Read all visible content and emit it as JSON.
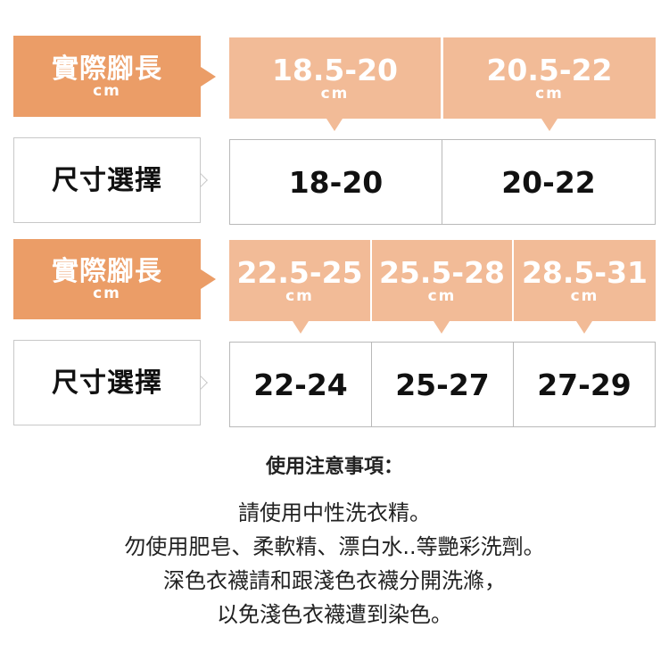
{
  "label_colors": {
    "actual": "#eb9d67",
    "header": "#f2bb97"
  },
  "rows": [
    {
      "foot_label": "實際腳長",
      "unit": "cm",
      "size_label": "尺寸選擇",
      "foot_ranges": [
        "18.5-20",
        "20.5-22"
      ],
      "sizes": [
        "18-20",
        "20-22"
      ]
    },
    {
      "foot_label": "實際腳長",
      "unit": "cm",
      "size_label": "尺寸選擇",
      "foot_ranges": [
        "22.5-25",
        "25.5-28",
        "28.5-31"
      ],
      "sizes": [
        "22-24",
        "25-27",
        "27-29"
      ]
    }
  ],
  "notes": {
    "title": "使用注意事項：",
    "lines": [
      "請使用中性洗衣精。",
      "勿使用肥皂、柔軟精、漂白水..等艷彩洗劑。",
      "深色衣襪請和跟淺色衣襪分開洗滌，",
      "以免淺色衣襪遭到染色。"
    ]
  }
}
